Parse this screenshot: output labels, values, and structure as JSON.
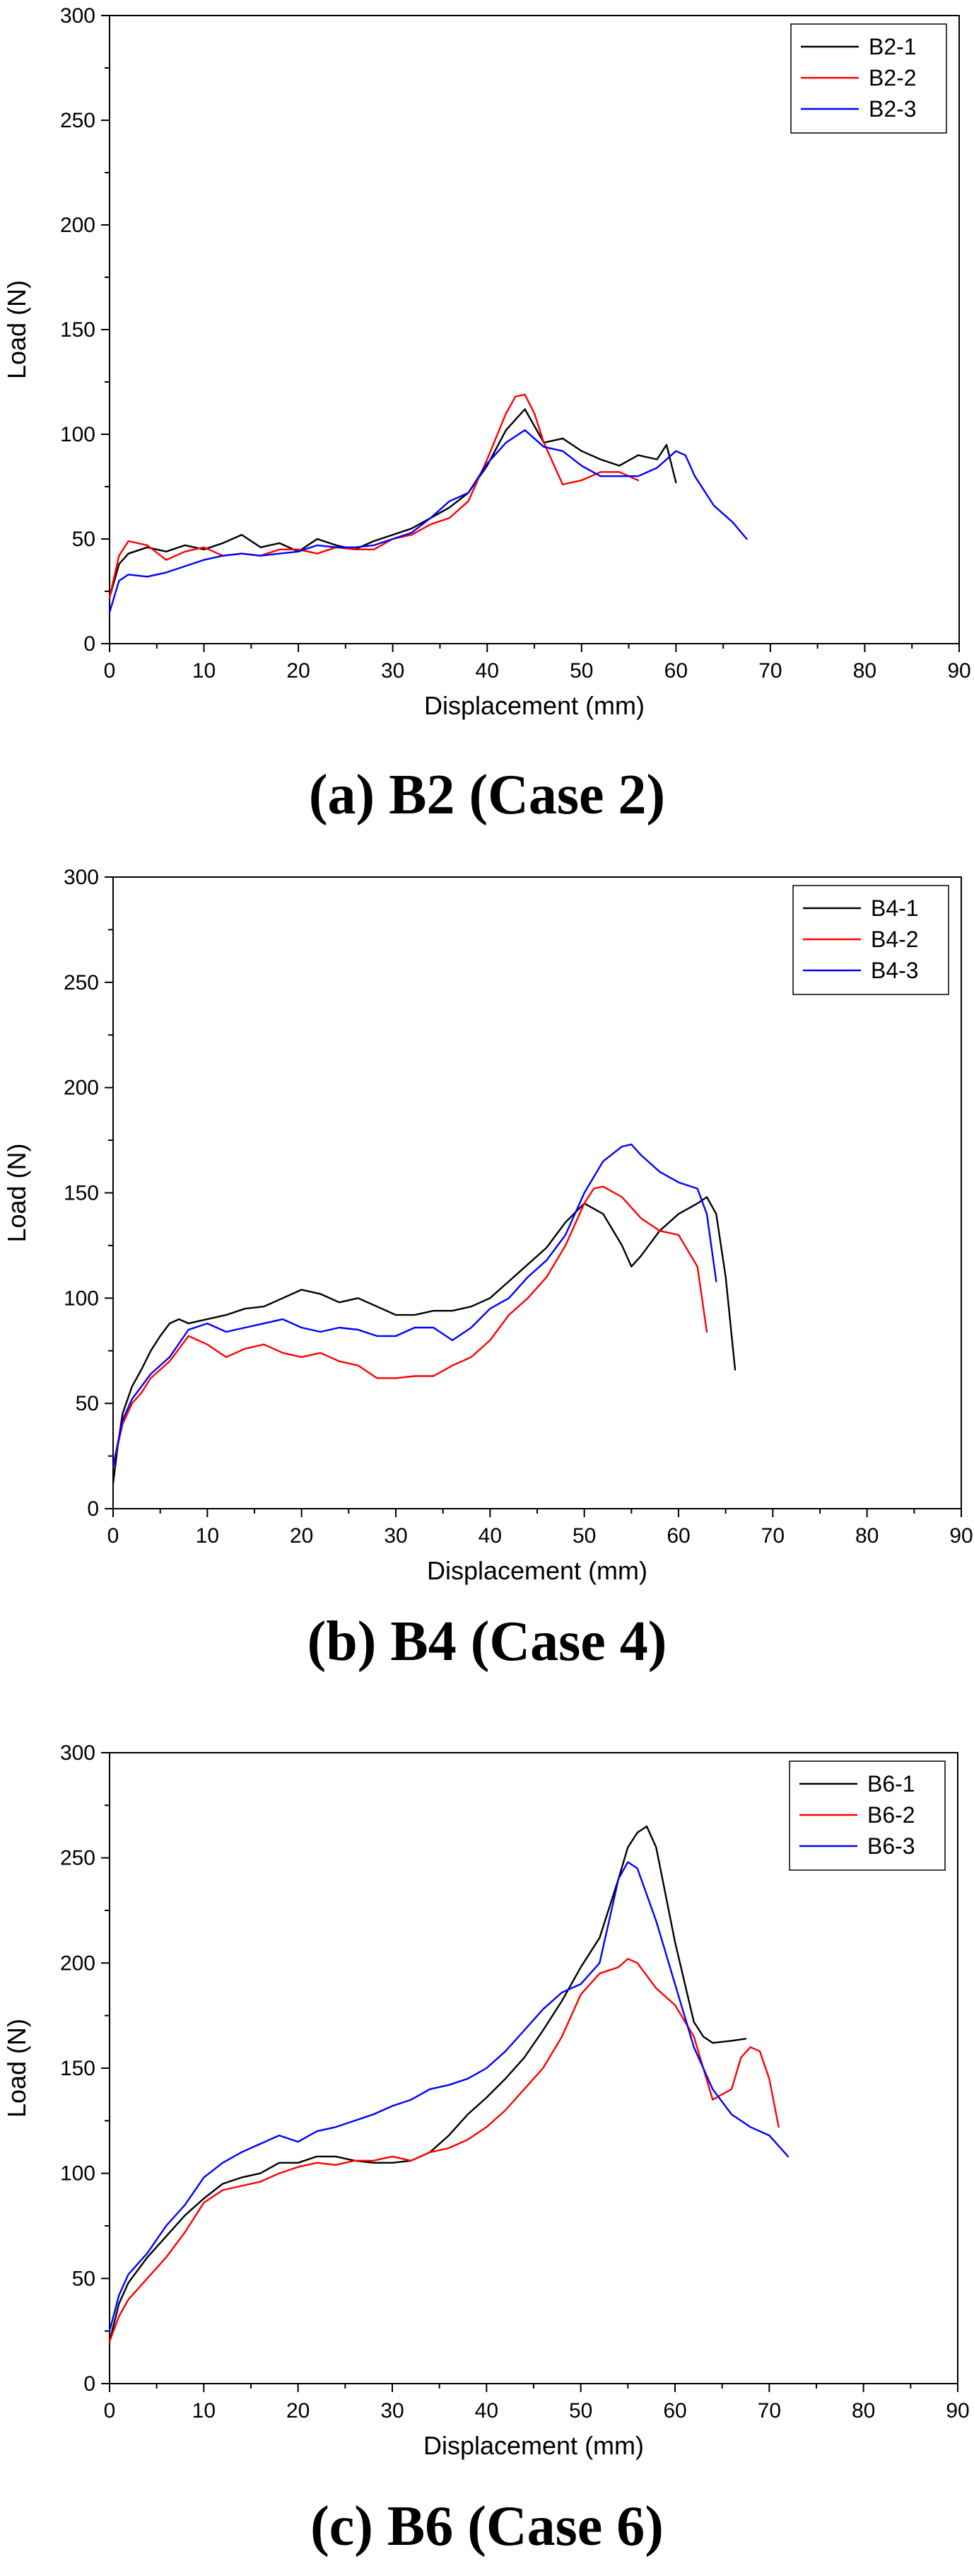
{
  "chart_data": [
    {
      "type": "line",
      "caption": "(a) B2 (Case 2)",
      "xlabel": "Displacement (mm)",
      "ylabel": "Load (N)",
      "xlim": [
        0,
        90
      ],
      "ylim": [
        0,
        300
      ],
      "xticks": [
        0,
        10,
        20,
        30,
        40,
        50,
        60,
        70,
        80,
        90
      ],
      "yticks": [
        0,
        50,
        100,
        150,
        200,
        250,
        300
      ],
      "xtick_labels": [
        "0",
        "10",
        "20",
        "30",
        "40",
        "50",
        "60",
        "70",
        "80",
        "90"
      ],
      "ytick_labels": [
        "0",
        "50",
        "100",
        "150",
        "200",
        "250",
        "300"
      ],
      "legend_position": "top-right",
      "series": [
        {
          "name": "B2-1",
          "color": "#000000",
          "x": [
            0,
            1,
            2,
            4,
            6,
            8,
            10,
            12,
            14,
            16,
            18,
            20,
            22,
            24,
            26,
            28,
            30,
            32,
            34,
            36,
            38,
            40,
            42,
            44,
            46,
            48,
            50,
            52,
            54,
            56,
            58,
            59,
            60
          ],
          "y": [
            22,
            38,
            43,
            46,
            44,
            47,
            45,
            48,
            52,
            46,
            48,
            44,
            50,
            47,
            45,
            49,
            52,
            55,
            60,
            65,
            72,
            85,
            102,
            112,
            96,
            98,
            92,
            88,
            85,
            90,
            88,
            95,
            77
          ]
        },
        {
          "name": "B2-2",
          "color": "#ff0000",
          "x": [
            0,
            1,
            2,
            4,
            6,
            8,
            10,
            12,
            14,
            16,
            18,
            20,
            22,
            24,
            26,
            28,
            30,
            32,
            34,
            36,
            38,
            40,
            42,
            43,
            44,
            45,
            46,
            48,
            50,
            52,
            54,
            56
          ],
          "y": [
            22,
            42,
            49,
            47,
            40,
            44,
            46,
            42,
            43,
            42,
            45,
            45,
            43,
            46,
            45,
            45,
            50,
            52,
            57,
            60,
            68,
            88,
            110,
            118,
            119,
            110,
            96,
            76,
            78,
            82,
            82,
            78
          ]
        },
        {
          "name": "B2-3",
          "color": "#0000ff",
          "x": [
            0,
            1,
            2,
            4,
            6,
            8,
            10,
            12,
            14,
            16,
            18,
            20,
            22,
            24,
            26,
            28,
            30,
            32,
            34,
            36,
            38,
            40,
            42,
            44,
            46,
            48,
            50,
            52,
            54,
            56,
            58,
            60,
            61,
            62,
            64,
            66,
            67.5
          ],
          "y": [
            15,
            30,
            33,
            32,
            34,
            37,
            40,
            42,
            43,
            42,
            43,
            44,
            47,
            46,
            46,
            47,
            50,
            53,
            60,
            68,
            72,
            86,
            96,
            102,
            94,
            92,
            85,
            80,
            80,
            80,
            84,
            92,
            90,
            80,
            66,
            58,
            50
          ]
        }
      ]
    },
    {
      "type": "line",
      "caption": "(b) B4 (Case 4)",
      "xlabel": "Displacement (mm)",
      "ylabel": "Load (N)",
      "xlim": [
        0,
        90
      ],
      "ylim": [
        0,
        300
      ],
      "xticks": [
        0,
        10,
        20,
        30,
        40,
        50,
        60,
        70,
        80,
        90
      ],
      "yticks": [
        0,
        50,
        100,
        150,
        200,
        250,
        300
      ],
      "xtick_labels": [
        "0",
        "10",
        "20",
        "30",
        "40",
        "50",
        "60",
        "70",
        "80",
        "90"
      ],
      "ytick_labels": [
        "0",
        "50",
        "100",
        "150",
        "200",
        "250",
        "300"
      ],
      "legend_position": "top-right",
      "series": [
        {
          "name": "B4-1",
          "color": "#000000",
          "x": [
            0,
            0.5,
            1,
            2,
            3,
            4,
            5,
            6,
            7,
            8,
            10,
            12,
            14,
            16,
            18,
            20,
            22,
            24,
            26,
            28,
            30,
            32,
            34,
            36,
            38,
            40,
            42,
            44,
            46,
            48,
            50,
            52,
            54,
            55,
            56,
            58,
            60,
            62,
            63,
            64,
            65,
            66
          ],
          "y": [
            12,
            30,
            45,
            58,
            66,
            75,
            82,
            88,
            90,
            88,
            90,
            92,
            95,
            96,
            100,
            104,
            102,
            98,
            100,
            96,
            92,
            92,
            94,
            94,
            96,
            100,
            108,
            116,
            124,
            136,
            145,
            140,
            125,
            115,
            120,
            132,
            140,
            145,
            148,
            140,
            110,
            66
          ]
        },
        {
          "name": "B4-2",
          "color": "#ff0000",
          "x": [
            0,
            1,
            2,
            3,
            4,
            6,
            8,
            10,
            12,
            14,
            16,
            18,
            20,
            22,
            24,
            26,
            28,
            30,
            32,
            34,
            36,
            38,
            40,
            42,
            44,
            46,
            48,
            50,
            51,
            52,
            54,
            56,
            58,
            60,
            62,
            63
          ],
          "y": [
            20,
            40,
            50,
            55,
            62,
            70,
            82,
            78,
            72,
            76,
            78,
            74,
            72,
            74,
            70,
            68,
            62,
            62,
            63,
            63,
            68,
            72,
            80,
            92,
            100,
            110,
            125,
            145,
            152,
            153,
            148,
            138,
            132,
            130,
            115,
            84
          ]
        },
        {
          "name": "B4-3",
          "color": "#0000ff",
          "x": [
            0,
            1,
            2,
            3,
            4,
            6,
            8,
            10,
            12,
            14,
            16,
            18,
            20,
            22,
            24,
            26,
            28,
            30,
            32,
            34,
            36,
            38,
            40,
            42,
            44,
            46,
            48,
            50,
            52,
            54,
            55,
            56,
            58,
            60,
            62,
            63,
            64
          ],
          "y": [
            20,
            42,
            52,
            58,
            64,
            72,
            85,
            88,
            84,
            86,
            88,
            90,
            86,
            84,
            86,
            85,
            82,
            82,
            86,
            86,
            80,
            86,
            95,
            100,
            110,
            118,
            130,
            150,
            165,
            172,
            173,
            168,
            160,
            155,
            152,
            140,
            108
          ]
        }
      ]
    },
    {
      "type": "line",
      "caption": "(c) B6 (Case 6)",
      "xlabel": "Displacement (mm)",
      "ylabel": "Load (N)",
      "xlim": [
        0,
        90
      ],
      "ylim": [
        0,
        300
      ],
      "xticks": [
        0,
        10,
        20,
        30,
        40,
        50,
        60,
        70,
        80,
        90
      ],
      "yticks": [
        0,
        50,
        100,
        150,
        200,
        250,
        300
      ],
      "xtick_labels": [
        "0",
        "10",
        "20",
        "30",
        "40",
        "50",
        "60",
        "70",
        "80",
        "90"
      ],
      "ytick_labels": [
        "0",
        "50",
        "100",
        "150",
        "200",
        "250",
        "300"
      ],
      "legend_position": "top-right",
      "series": [
        {
          "name": "B6-1",
          "color": "#000000",
          "x": [
            0,
            1,
            2,
            4,
            6,
            8,
            10,
            12,
            14,
            16,
            18,
            20,
            22,
            24,
            26,
            28,
            30,
            32,
            34,
            36,
            38,
            40,
            42,
            44,
            46,
            48,
            50,
            52,
            54,
            55,
            56,
            57,
            58,
            60,
            62,
            63,
            64,
            66,
            67.5
          ],
          "y": [
            20,
            38,
            48,
            60,
            70,
            80,
            88,
            95,
            98,
            100,
            105,
            105,
            108,
            108,
            106,
            105,
            105,
            106,
            110,
            118,
            128,
            136,
            145,
            155,
            168,
            182,
            198,
            212,
            240,
            255,
            262,
            265,
            255,
            210,
            172,
            165,
            162,
            163,
            164
          ]
        },
        {
          "name": "B6-2",
          "color": "#ff0000",
          "x": [
            0,
            1,
            2,
            4,
            6,
            8,
            10,
            12,
            14,
            16,
            18,
            20,
            22,
            24,
            26,
            28,
            30,
            32,
            34,
            36,
            38,
            40,
            42,
            44,
            46,
            48,
            50,
            52,
            54,
            55,
            56,
            58,
            60,
            62,
            64,
            66,
            67,
            68,
            69,
            70,
            71
          ],
          "y": [
            20,
            32,
            40,
            50,
            60,
            72,
            86,
            92,
            94,
            96,
            100,
            103,
            105,
            104,
            106,
            106,
            108,
            106,
            110,
            112,
            116,
            122,
            130,
            140,
            150,
            165,
            185,
            195,
            198,
            202,
            200,
            188,
            180,
            165,
            135,
            140,
            155,
            160,
            158,
            145,
            122
          ]
        },
        {
          "name": "B6-3",
          "color": "#0000ff",
          "x": [
            0,
            1,
            2,
            4,
            6,
            8,
            10,
            12,
            14,
            16,
            18,
            20,
            22,
            24,
            26,
            28,
            30,
            32,
            34,
            36,
            38,
            40,
            42,
            44,
            46,
            48,
            50,
            52,
            53,
            54,
            55,
            56,
            58,
            60,
            62,
            64,
            66,
            68,
            70,
            72
          ],
          "y": [
            25,
            42,
            52,
            62,
            75,
            85,
            98,
            105,
            110,
            114,
            118,
            115,
            120,
            122,
            125,
            128,
            132,
            135,
            140,
            142,
            145,
            150,
            158,
            168,
            178,
            186,
            190,
            200,
            220,
            240,
            248,
            245,
            220,
            190,
            160,
            140,
            128,
            122,
            118,
            108
          ]
        }
      ]
    }
  ]
}
